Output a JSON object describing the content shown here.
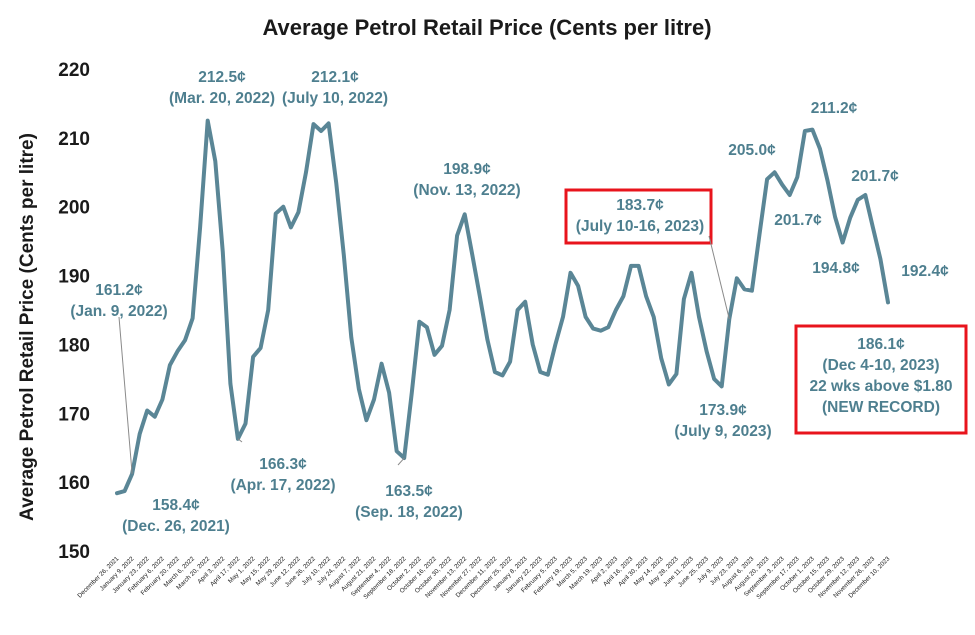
{
  "chart_data": {
    "type": "line",
    "title": "Average Petrol Retail Price (Cents per litre)",
    "xlabel": "",
    "ylabel": "Average Petrol Retail Price (Cents per litre)",
    "ylim": [
      150,
      220
    ],
    "yticks": [
      "150",
      "160",
      "170",
      "180",
      "190",
      "200",
      "210",
      "220"
    ],
    "grid": false,
    "legend": "none",
    "line_color": "#5a8696",
    "annotation_color": "#4e7f8f",
    "box_color": "#e8141c",
    "x": [
      "December 26, 2021",
      "January 2, 2022",
      "January 9, 2022",
      "January 16, 2022",
      "January 23, 2022",
      "January 30, 2022",
      "February 6, 2022",
      "February 13, 2022",
      "February 20, 2022",
      "February 27, 2022",
      "March 6, 2022",
      "March 13, 2022",
      "March 20, 2022",
      "March 27, 2022",
      "April 3, 2022",
      "April 10, 2022",
      "April 17, 2022",
      "April 24, 2022",
      "May 1, 2022",
      "May 8, 2022",
      "May 15, 2022",
      "May 22, 2022",
      "May 29, 2022",
      "June 5, 2022",
      "June 12, 2022",
      "June 19, 2022",
      "June 26, 2022",
      "July 3, 2022",
      "July 10, 2022",
      "July 17, 2022",
      "July 24, 2022",
      "July 31, 2022",
      "August 7, 2022",
      "August 14, 2022",
      "August 21, 2022",
      "August 28, 2022",
      "September 4, 2022",
      "September 11, 2022",
      "September 18, 2022",
      "September 25, 2022",
      "October 2, 2022",
      "October 9, 2022",
      "October 16, 2022",
      "October 23, 2022",
      "October 30, 2022",
      "November 6, 2022",
      "November 13, 2022",
      "November 20, 2022",
      "November 27, 2022",
      "December 4, 2022",
      "December 11, 2022",
      "December 18, 2022",
      "December 25, 2022",
      "January 1, 2023",
      "January 8, 2023",
      "January 15, 2023",
      "January 22, 2023",
      "January 29, 2023",
      "February 5, 2023",
      "February 12, 2023",
      "February 19, 2023",
      "February 26, 2023",
      "March 5, 2023",
      "March 12, 2023",
      "March 19, 2023",
      "March 26, 2023",
      "April 2, 2023",
      "April 9, 2023",
      "April 16, 2023",
      "April 23, 2023",
      "April 30, 2023",
      "May 7, 2023",
      "May 14, 2023",
      "May 21, 2023",
      "May 28, 2023",
      "June 4, 2023",
      "June 11, 2023",
      "June 18, 2023",
      "June 25, 2023",
      "July 2, 2023",
      "July 9, 2023",
      "July 16, 2023",
      "July 23, 2023",
      "July 30, 2023",
      "August 6, 2023",
      "August 13, 2023",
      "August 20, 2023",
      "August 27, 2023",
      "September 3, 2023",
      "September 10, 2023",
      "September 17, 2023",
      "September 24, 2023",
      "October 1, 2023",
      "October 8, 2023",
      "October 15, 2023",
      "October 22, 2023",
      "October 29, 2023",
      "November 5, 2023",
      "November 12, 2023",
      "November 19, 2023",
      "November 26, 2023",
      "December 3, 2023",
      "December 10, 2023"
    ],
    "xticks": [
      "December 26, 2021",
      "January 9, 2022",
      "January 23, 2022",
      "February 6, 2022",
      "February 20, 2022",
      "March 6, 2022",
      "March 20, 2022",
      "April 3, 2022",
      "April 17, 2022",
      "May 1, 2022",
      "May 15, 2022",
      "May 29, 2022",
      "June 12, 2022",
      "June 26, 2022",
      "July 10, 2022",
      "July 24, 2022",
      "August 7, 2022",
      "August 21, 2022",
      "September 4, 2022",
      "September 18, 2022",
      "October 2, 2022",
      "October 16, 2022",
      "October 30, 2022",
      "November 13, 2022",
      "November 27, 2022",
      "December 11, 2022",
      "December 25, 2022",
      "January 8, 2023",
      "January 22, 2023",
      "February 5, 2023",
      "February 19, 2023",
      "March 5, 2023",
      "March 19, 2023",
      "April 2, 2023",
      "April 16, 2023",
      "April 30, 2023",
      "May 14, 2023",
      "May 28, 2023",
      "June 11, 2023",
      "June 25, 2023",
      "July 9, 2023",
      "July 23, 2023",
      "August 6, 2023",
      "August 20, 2023",
      "September 3, 2023",
      "September 17, 2023",
      "October 1, 2023",
      "October 15, 2023",
      "October 29, 2023",
      "November 12, 2023",
      "November 26, 2023",
      "December 10, 2023"
    ],
    "values": [
      158.4,
      158.7,
      161.2,
      167.0,
      170.4,
      169.5,
      172.0,
      177.0,
      179.0,
      180.6,
      183.8,
      197.0,
      212.5,
      206.6,
      193.4,
      174.3,
      166.3,
      168.5,
      178.2,
      179.5,
      185.0,
      199.0,
      200.0,
      197.0,
      199.2,
      205.0,
      212.0,
      211.0,
      212.1,
      203.5,
      193.0,
      181.0,
      173.5,
      169.0,
      172.0,
      177.2,
      173.0,
      164.5,
      163.5,
      173.0,
      183.3,
      182.5,
      178.5,
      179.8,
      185.0,
      195.8,
      198.9,
      193.0,
      187.0,
      180.7,
      176.0,
      175.5,
      177.5,
      185.0,
      186.2,
      180.0,
      176.0,
      175.6,
      180.0,
      184.0,
      190.4,
      188.5,
      184.0,
      182.3,
      182.0,
      182.5,
      185.0,
      187.0,
      191.4,
      191.4,
      187.0,
      184.0,
      178.0,
      174.2,
      175.7,
      186.6,
      190.4,
      184.0,
      179.0,
      175.0,
      173.9,
      183.7,
      189.6,
      188.0,
      187.8,
      196.0,
      204.0,
      205.0,
      203.2,
      201.7,
      204.3,
      211.0,
      211.2,
      208.4,
      203.8,
      198.5,
      194.8,
      198.4,
      201.0,
      201.7,
      197.0,
      192.4,
      186.1
    ],
    "annotations": [
      {
        "lines": [
          "212.5¢",
          "(Mar. 20, 2022)"
        ],
        "index": 12,
        "boxed": false,
        "leader": false
      },
      {
        "lines": [
          "212.1¢",
          "(July 10, 2022)"
        ],
        "index": 28,
        "boxed": false,
        "leader": false
      },
      {
        "lines": [
          "161.2¢",
          "(Jan. 9, 2022)"
        ],
        "index": 2,
        "boxed": false,
        "leader": true
      },
      {
        "lines": [
          "158.4¢",
          "(Dec. 26, 2021)"
        ],
        "index": 0,
        "boxed": false,
        "leader": false
      },
      {
        "lines": [
          "166.3¢",
          "(Apr. 17, 2022)"
        ],
        "index": 16,
        "boxed": false,
        "leader": true
      },
      {
        "lines": [
          "163.5¢",
          "(Sep. 18, 2022)"
        ],
        "index": 38,
        "boxed": false,
        "leader": true
      },
      {
        "lines": [
          "198.9¢",
          "(Nov. 13, 2022)"
        ],
        "index": 46,
        "boxed": false,
        "leader": false
      },
      {
        "lines": [
          "183.7¢",
          "(July 10-16, 2023)"
        ],
        "index": 81,
        "boxed": true,
        "leader": true
      },
      {
        "lines": [
          "173.9¢",
          "(July 9, 2023)"
        ],
        "index": 80,
        "boxed": false,
        "leader": false
      },
      {
        "lines": [
          "205.0¢"
        ],
        "index": 87,
        "boxed": false,
        "leader": false
      },
      {
        "lines": [
          "201.7¢"
        ],
        "index": 89,
        "boxed": false,
        "leader": false
      },
      {
        "lines": [
          "211.2¢"
        ],
        "index": 92,
        "boxed": false,
        "leader": false
      },
      {
        "lines": [
          "201.7¢"
        ],
        "index": 99,
        "boxed": false,
        "leader": false
      },
      {
        "lines": [
          "194.8¢"
        ],
        "index": 96,
        "boxed": false,
        "leader": false
      },
      {
        "lines": [
          "192.4¢"
        ],
        "index": 101,
        "boxed": false,
        "leader": false
      },
      {
        "lines": [
          "186.1¢",
          "(Dec 4-10, 2023)",
          "22 wks above $1.80",
          "(NEW RECORD)"
        ],
        "index": 102,
        "boxed": true,
        "leader": false
      }
    ]
  }
}
